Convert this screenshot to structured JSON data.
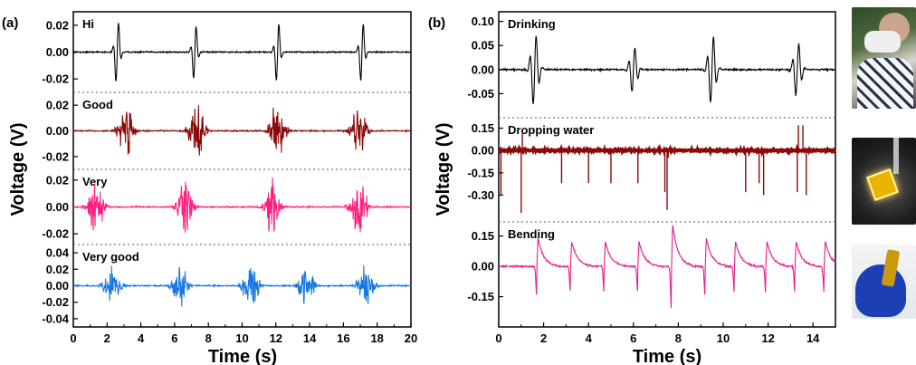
{
  "panels": {
    "a": {
      "label": "(a)",
      "ylabel": "Voltage (V)",
      "xlabel": "Time (s)",
      "xticks": [
        "0",
        "2",
        "4",
        "6",
        "8",
        "10",
        "12",
        "14",
        "16",
        "18",
        "20"
      ]
    },
    "b": {
      "label": "(b)",
      "ylabel": "Voltage (V)",
      "xlabel": "Time (s)",
      "xticks": [
        "0",
        "2",
        "4",
        "6",
        "8",
        "10",
        "12",
        "14"
      ]
    }
  },
  "photos": [
    "drinking-photo",
    "dropping-water-photo",
    "bending-photo"
  ],
  "chart_data": [
    {
      "type": "line",
      "panel": "a",
      "xlabel": "Time (s)",
      "ylabel": "Voltage (V)",
      "xlim": [
        0,
        20
      ],
      "stacked_subplots": [
        {
          "name": "Hi",
          "color": "#000000",
          "ylim": [
            -0.03,
            0.03
          ],
          "yticks": [
            -0.02,
            0.0,
            0.02
          ],
          "yticklabels": [
            "-0.02",
            "0.00",
            "0.02"
          ],
          "events": [
            {
              "t": 2.6,
              "amp": 0.024
            },
            {
              "t": 7.2,
              "amp": 0.021
            },
            {
              "t": 12.1,
              "amp": 0.023
            },
            {
              "t": 17.1,
              "amp": 0.023
            }
          ]
        },
        {
          "name": "Good",
          "color": "#8b0a0a",
          "ylim": [
            -0.03,
            0.03
          ],
          "yticks": [
            -0.02,
            0.0,
            0.02
          ],
          "yticklabels": [
            "-0.02",
            "0.00",
            "0.02"
          ],
          "events": [
            {
              "t": 3.1,
              "amp": 0.022
            },
            {
              "t": 7.3,
              "amp": 0.023
            },
            {
              "t": 12.1,
              "amp": 0.022
            },
            {
              "t": 16.9,
              "amp": 0.022
            }
          ]
        },
        {
          "name": "Very",
          "color": "#ff1f7e",
          "ylim": [
            -0.028,
            0.028
          ],
          "yticks": [
            -0.02,
            0.0,
            0.02
          ],
          "yticklabels": [
            "-0.02",
            "0.00",
            "0.02"
          ],
          "events": [
            {
              "t": 1.3,
              "amp": 0.023
            },
            {
              "t": 6.6,
              "amp": 0.022
            },
            {
              "t": 11.8,
              "amp": 0.023
            },
            {
              "t": 16.9,
              "amp": 0.023
            }
          ]
        },
        {
          "name": "Very good",
          "color": "#1a78e0",
          "ylim": [
            -0.05,
            0.05
          ],
          "yticks": [
            -0.04,
            -0.02,
            0.0,
            0.02,
            0.04
          ],
          "yticklabels": [
            "-0.04",
            "-0.02",
            "0.00",
            "0.02",
            "0.04"
          ],
          "events": [
            {
              "t": 2.3,
              "amp": 0.025
            },
            {
              "t": 6.3,
              "amp": 0.03
            },
            {
              "t": 10.5,
              "amp": 0.03
            },
            {
              "t": 13.8,
              "amp": 0.028
            },
            {
              "t": 17.3,
              "amp": 0.03
            }
          ]
        }
      ]
    },
    {
      "type": "line",
      "panel": "b",
      "xlabel": "Time (s)",
      "ylabel": "Voltage (V)",
      "xlim": [
        0,
        15
      ],
      "stacked_subplots": [
        {
          "name": "Drinking",
          "color": "#000000",
          "ylim": [
            -0.1,
            0.12
          ],
          "yticks": [
            -0.05,
            0.0,
            0.05,
            0.1
          ],
          "yticklabels": [
            "-0.05",
            "0.00",
            "0.05",
            "0.10"
          ],
          "events": [
            {
              "t": 1.6,
              "amp": 0.08
            },
            {
              "t": 6.0,
              "amp": 0.05
            },
            {
              "t": 9.5,
              "amp": 0.075
            },
            {
              "t": 13.3,
              "amp": 0.06
            }
          ]
        },
        {
          "name": "Dropping water",
          "color": "#8b0a0a",
          "ylim": [
            -0.48,
            0.22
          ],
          "yticks": [
            -0.3,
            -0.15,
            0.0,
            0.15
          ],
          "yticklabels": [
            "-0.30",
            "-0.15",
            "0.00",
            "0.15"
          ],
          "spikes": [
            {
              "t": 0.1,
              "v": -0.3
            },
            {
              "t": 1.0,
              "v": -0.42
            },
            {
              "t": 1.05,
              "v": 0.12
            },
            {
              "t": 2.8,
              "v": -0.22
            },
            {
              "t": 4.0,
              "v": -0.22
            },
            {
              "t": 5.0,
              "v": -0.22
            },
            {
              "t": 6.2,
              "v": -0.22
            },
            {
              "t": 7.4,
              "v": -0.28
            },
            {
              "t": 7.5,
              "v": -0.4
            },
            {
              "t": 7.55,
              "v": -0.05
            },
            {
              "t": 11.0,
              "v": -0.28
            },
            {
              "t": 11.6,
              "v": -0.22
            },
            {
              "t": 11.8,
              "v": -0.3
            },
            {
              "t": 13.3,
              "v": -0.28
            },
            {
              "t": 13.35,
              "v": 0.17
            },
            {
              "t": 13.55,
              "v": 0.17
            },
            {
              "t": 13.7,
              "v": -0.3
            }
          ]
        },
        {
          "name": "Bending",
          "color": "#e61c8c",
          "ylim": [
            -0.3,
            0.22
          ],
          "yticks": [
            -0.15,
            0.0,
            0.15
          ],
          "yticklabels": [
            "-0.15",
            "0.00",
            "0.15"
          ],
          "events": [
            {
              "t": 1.7,
              "amp": 0.17
            },
            {
              "t": 3.2,
              "amp": 0.15
            },
            {
              "t": 4.7,
              "amp": 0.15
            },
            {
              "t": 6.2,
              "amp": 0.15
            },
            {
              "t": 7.7,
              "amp": 0.25
            },
            {
              "t": 9.2,
              "amp": 0.17
            },
            {
              "t": 10.5,
              "amp": 0.15
            },
            {
              "t": 11.9,
              "amp": 0.15
            },
            {
              "t": 13.2,
              "amp": 0.15
            },
            {
              "t": 14.5,
              "amp": 0.15
            }
          ]
        }
      ]
    }
  ]
}
